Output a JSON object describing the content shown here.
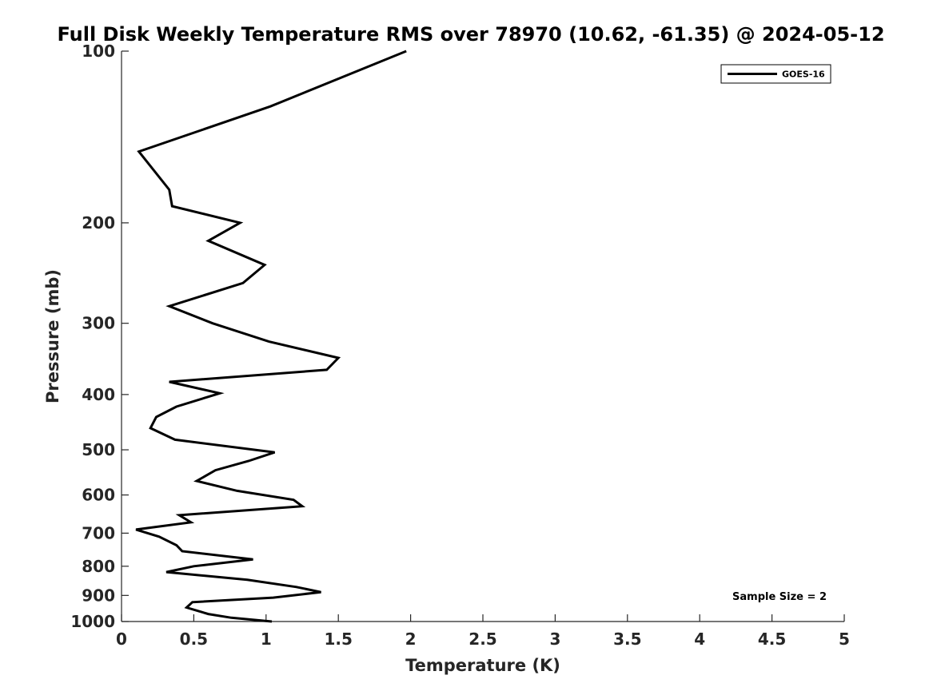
{
  "chart_data": {
    "type": "line",
    "title": "Full Disk Weekly Temperature RMS over 78970 (10.62, -61.35) @ 2024-05-12",
    "xlabel": "Temperature (K)",
    "ylabel": "Pressure (mb)",
    "xlim": [
      0,
      5
    ],
    "ylim": [
      1000,
      100
    ],
    "yscale": "log",
    "x_ticks": [
      "0",
      "0.5",
      "1",
      "1.5",
      "2",
      "2.5",
      "3",
      "3.5",
      "4",
      "4.5",
      "5"
    ],
    "y_ticks": [
      "100",
      "200",
      "300",
      "400",
      "500",
      "600",
      "700",
      "800",
      "900",
      "1000"
    ],
    "grid": false,
    "legend_position": "top-right",
    "annotation": "Sample Size = 2",
    "series": [
      {
        "name": "GOES-16",
        "color": "#000000",
        "points": [
          [
            1.97,
            100
          ],
          [
            1.03,
            125
          ],
          [
            0.12,
            150
          ],
          [
            0.33,
            175
          ],
          [
            0.35,
            187
          ],
          [
            0.82,
            200
          ],
          [
            0.6,
            215
          ],
          [
            0.99,
            237
          ],
          [
            0.84,
            255
          ],
          [
            0.33,
            280
          ],
          [
            0.63,
            300
          ],
          [
            1.02,
            323
          ],
          [
            1.5,
            345
          ],
          [
            1.42,
            362
          ],
          [
            0.33,
            380
          ],
          [
            0.68,
            398
          ],
          [
            0.38,
            420
          ],
          [
            0.24,
            438
          ],
          [
            0.2,
            458
          ],
          [
            0.37,
            480
          ],
          [
            1.06,
            505
          ],
          [
            0.88,
            523
          ],
          [
            0.65,
            543
          ],
          [
            0.52,
            567
          ],
          [
            0.8,
            590
          ],
          [
            1.19,
            612
          ],
          [
            1.25,
            628
          ],
          [
            0.4,
            651
          ],
          [
            0.48,
            670
          ],
          [
            0.1,
            690
          ],
          [
            0.26,
            710
          ],
          [
            0.38,
            735
          ],
          [
            0.42,
            753
          ],
          [
            0.91,
            778
          ],
          [
            0.5,
            800
          ],
          [
            0.31,
            819
          ],
          [
            0.87,
            845
          ],
          [
            1.21,
            870
          ],
          [
            1.38,
            888
          ],
          [
            1.05,
            908
          ],
          [
            0.49,
            925
          ],
          [
            0.45,
            945
          ],
          [
            0.6,
            970
          ],
          [
            0.76,
            985
          ],
          [
            1.04,
            1000
          ]
        ]
      }
    ]
  }
}
